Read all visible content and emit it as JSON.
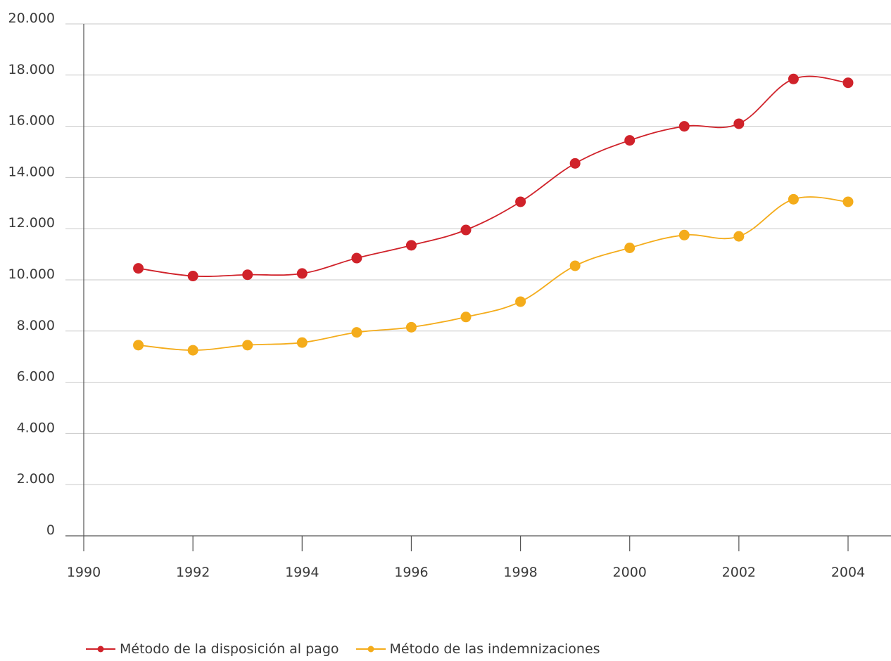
{
  "chart_data": {
    "type": "line",
    "title": "",
    "xlabel": "",
    "ylabel": "",
    "xlim": [
      1990,
      2004
    ],
    "ylim": [
      0,
      20000
    ],
    "x_ticks": [
      1990,
      1992,
      1994,
      1996,
      1998,
      2000,
      2002,
      2004
    ],
    "x_tick_labels": [
      "1990",
      "1992",
      "1994",
      "1996",
      "1998",
      "2000",
      "2002",
      "2004"
    ],
    "y_ticks": [
      0,
      2000,
      4000,
      6000,
      8000,
      10000,
      12000,
      14000,
      16000,
      18000,
      20000
    ],
    "y_tick_labels": [
      "0",
      "2.000",
      "4.000",
      "6.000",
      "8.000",
      "10.000",
      "12.000",
      "14.000",
      "16.000",
      "18.000",
      "20.000"
    ],
    "grid": "horizontal",
    "legend_position": "bottom-left",
    "x": [
      1991,
      1992,
      1993,
      1994,
      1995,
      1996,
      1997,
      1998,
      1999,
      2000,
      2001,
      2002,
      2003,
      2004
    ],
    "series": [
      {
        "name": "Método de la disposición al pago",
        "color": "#d0222a",
        "values": [
          10450,
          10150,
          10200,
          10250,
          10850,
          11350,
          11950,
          13050,
          14550,
          15450,
          16000,
          16100,
          17850,
          17700
        ]
      },
      {
        "name": "Método de las indemnizaciones",
        "color": "#f4ac1b",
        "values": [
          7450,
          7250,
          7450,
          7550,
          7950,
          8150,
          8550,
          9150,
          10550,
          11250,
          11750,
          11700,
          13150,
          13050
        ]
      }
    ],
    "colors": {
      "grid": "#c9c9c9",
      "axis": "#555555",
      "text": "#3a3a3a"
    }
  }
}
